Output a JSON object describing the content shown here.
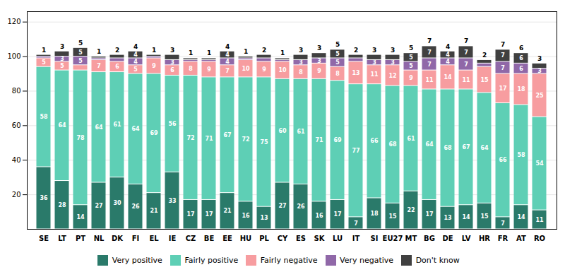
{
  "chart_data": {
    "type": "bar",
    "stacked": true,
    "categories": [
      "SE",
      "LT",
      "PT",
      "NL",
      "DK",
      "FI",
      "EL",
      "IE",
      "CZ",
      "BE",
      "EE",
      "HU",
      "PL",
      "CY",
      "ES",
      "SK",
      "LU",
      "IT",
      "SI",
      "EU27",
      "MT",
      "BG",
      "DE",
      "LV",
      "HR",
      "FR",
      "AT",
      "RO"
    ],
    "series": [
      {
        "name": "Very positive",
        "color": "#2a7a6a",
        "values": [
          36,
          28,
          14,
          27,
          30,
          26,
          21,
          33,
          17,
          17,
          21,
          16,
          13,
          27,
          26,
          16,
          17,
          7,
          18,
          15,
          22,
          17,
          13,
          14,
          15,
          7,
          14,
          11
        ],
        "value_labels": [
          "36",
          "28",
          "14",
          "27",
          "30",
          "26",
          "21",
          "33",
          "17",
          "17",
          "21",
          "16",
          "13",
          "27",
          "26",
          "16",
          "17",
          "7",
          "18",
          "15",
          "22",
          "17",
          "13",
          "14",
          "15",
          "7",
          "14",
          "11"
        ]
      },
      {
        "name": "Fairly positive",
        "color": "#5ecfb5",
        "values": [
          58,
          64,
          78,
          64,
          61,
          64,
          69,
          56,
          72,
          71,
          67,
          72,
          75,
          60,
          61,
          71,
          69,
          77,
          66,
          68,
          61,
          64,
          68,
          67,
          64,
          66,
          58,
          54
        ],
        "value_labels": [
          "58",
          "64",
          "78",
          "64",
          "61",
          "64",
          "69",
          "56",
          "72",
          "71",
          "67",
          "72",
          "75",
          "60",
          "61",
          "71",
          "69",
          "77",
          "66",
          "68",
          "61",
          "64",
          "68",
          "67",
          "64",
          "66",
          "58",
          "54"
        ]
      },
      {
        "name": "Fairly negative",
        "color": "#f79da0",
        "values": [
          5,
          5,
          3,
          7,
          6,
          5,
          9,
          6,
          8,
          9,
          7,
          10,
          9,
          10,
          8,
          9,
          8,
          13,
          11,
          12,
          9,
          11,
          14,
          11,
          15,
          17,
          18,
          25
        ],
        "value_labels": [
          "5",
          "5",
          null,
          "7",
          "6",
          "5",
          "9",
          "6",
          "8",
          "9",
          "7",
          "10",
          "9",
          "10",
          "8",
          "9",
          "8",
          "13",
          "11",
          "12",
          "9",
          "11",
          "14",
          "11",
          "15",
          "17",
          "18",
          "25"
        ]
      },
      {
        "name": "Very negative",
        "color": "#9068a8",
        "values": [
          1,
          3,
          5,
          1,
          2,
          4,
          1,
          3,
          1,
          1,
          4,
          1,
          2,
          1,
          3,
          3,
          5,
          2,
          3,
          3,
          5,
          7,
          4,
          7,
          2,
          7,
          6,
          3
        ],
        "value_labels": [
          null,
          "3",
          "5",
          null,
          null,
          "4",
          null,
          "3",
          null,
          null,
          "4",
          null,
          null,
          null,
          "3",
          "3",
          "5",
          null,
          "3",
          "3",
          "5",
          "7",
          "4",
          "7",
          null,
          "7",
          "6",
          "3"
        ]
      },
      {
        "name": "Don't know",
        "color": "#404040",
        "values": [
          1,
          3,
          5,
          1,
          2,
          4,
          1,
          3,
          1,
          1,
          4,
          1,
          2,
          1,
          3,
          3,
          5,
          2,
          3,
          3,
          5,
          7,
          4,
          7,
          2,
          7,
          6,
          3
        ],
        "value_labels": [
          null,
          null,
          "5",
          null,
          null,
          "4",
          null,
          null,
          null,
          null,
          "4",
          null,
          null,
          null,
          null,
          null,
          "5",
          null,
          null,
          null,
          "5",
          "7",
          "4",
          "7",
          null,
          "7",
          "6",
          null
        ]
      }
    ],
    "top_labels": [
      1,
      3,
      5,
      1,
      2,
      4,
      1,
      3,
      1,
      1,
      4,
      1,
      2,
      1,
      3,
      3,
      5,
      2,
      3,
      3,
      5,
      7,
      4,
      7,
      2,
      7,
      6,
      3
    ],
    "data_labels": true,
    "ylim": [
      0,
      126
    ],
    "yticks": [
      20,
      40,
      60,
      80,
      100,
      120
    ],
    "grid": true,
    "legend": "bottom"
  }
}
